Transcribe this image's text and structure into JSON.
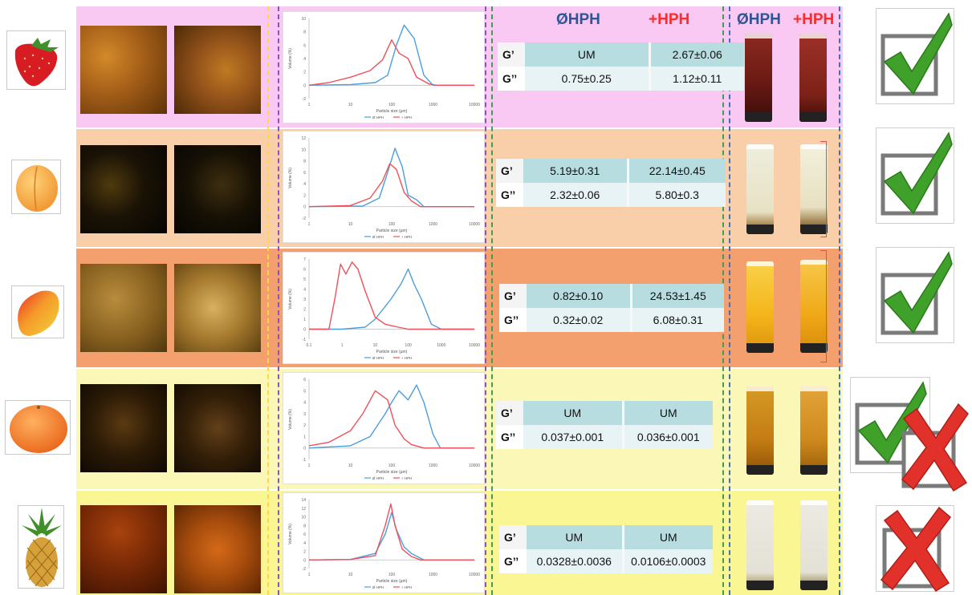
{
  "headers": {
    "rheo_no_hph": "ØHPH",
    "rheo_hph": "+HPH",
    "vial_no_hph": "ØHPH",
    "vial_hph": "+HPH"
  },
  "colors": {
    "no_hph": "#2f5597",
    "hph": "#ff2a2a",
    "psd_no_hph": "#4a9ee0",
    "psd_hph": "#f0505a"
  },
  "psd_axis": {
    "xlabel": "Particle size (µm)",
    "ylabel": "Volume (%)",
    "legend_no_hph": "Ø HPH",
    "legend_hph": "+ HPH"
  },
  "rows": [
    {
      "fruit": "strawberry",
      "icon": "strawberry-icon",
      "g1_label": "G’",
      "g1_no_hph": "UM",
      "g1_hph": "2.67±0.06",
      "g2_label": "G’’",
      "g2_no_hph": "0.75±0.25",
      "g2_hph": "1.12±0.11",
      "verdict": "check",
      "chart_data": {
        "type": "line",
        "xscale": "log",
        "xticks": [
          "1",
          "10",
          "100",
          "1000",
          "10000"
        ],
        "yticks": [
          "-2",
          "0",
          "2",
          "4",
          "6",
          "8",
          "10"
        ],
        "ylim": [
          -2,
          10
        ],
        "series": [
          {
            "name": "Ø HPH",
            "x": [
              1,
              10,
              40,
              80,
              130,
              200,
              350,
              600,
              1000,
              10000
            ],
            "y": [
              0,
              0.1,
              0.4,
              1.5,
              6.0,
              9.0,
              7.0,
              1.5,
              0,
              0
            ]
          },
          {
            "name": "+ HPH",
            "x": [
              1,
              3,
              10,
              30,
              60,
              100,
              150,
              250,
              400,
              800,
              1200,
              10000
            ],
            "y": [
              0,
              0.4,
              1.2,
              2.2,
              3.8,
              6.8,
              4.8,
              4.0,
              1.2,
              0.2,
              0,
              0
            ]
          }
        ]
      }
    },
    {
      "fruit": "apricot",
      "icon": "apricot-icon",
      "g1_label": "G’",
      "g1_no_hph": "5.19±0.31",
      "g1_hph": "22.14±0.45",
      "g2_label": "G’’",
      "g2_no_hph": "2.32±0.06",
      "g2_hph": "5.80±0.3",
      "verdict": "check",
      "chart_data": {
        "type": "line",
        "xscale": "log",
        "xticks": [
          "1",
          "10",
          "100",
          "1000",
          "10000"
        ],
        "yticks": [
          "-2",
          "0",
          "2",
          "4",
          "6",
          "8",
          "10",
          "12"
        ],
        "ylim": [
          -2,
          12
        ],
        "series": [
          {
            "name": "Ø HPH",
            "x": [
              1,
              20,
              50,
              80,
              120,
              180,
              250,
              400,
              600,
              10000
            ],
            "y": [
              0,
              0.1,
              1.5,
              6.0,
              10.2,
              7.0,
              2.0,
              1.2,
              0,
              0
            ]
          },
          {
            "name": "+ HPH",
            "x": [
              1,
              10,
              30,
              60,
              90,
              130,
              200,
              300,
              500,
              10000
            ],
            "y": [
              0,
              0.2,
              1.5,
              4.5,
              7.5,
              6.5,
              2.5,
              1.0,
              0,
              0
            ]
          }
        ]
      }
    },
    {
      "fruit": "mango",
      "icon": "mango-icon",
      "g1_label": "G’",
      "g1_no_hph": "0.82±0.10",
      "g1_hph": "24.53±1.45",
      "g2_label": "G’’",
      "g2_no_hph": "0.32±0.02",
      "g2_hph": "6.08±0.31",
      "verdict": "check",
      "chart_data": {
        "type": "line",
        "xscale": "log",
        "xticks": [
          "0.1",
          "1",
          "10",
          "100",
          "1000",
          "10000"
        ],
        "yticks": [
          "-1",
          "0",
          "1",
          "2",
          "3",
          "4",
          "5",
          "6",
          "7"
        ],
        "ylim": [
          -1,
          7
        ],
        "series": [
          {
            "name": "Ø HPH",
            "x": [
              0.1,
              1,
              5,
              10,
              30,
              60,
              100,
              150,
              250,
              500,
              1000,
              10000
            ],
            "y": [
              0,
              0,
              0.2,
              1.0,
              3.0,
              4.5,
              6.0,
              4.5,
              3.0,
              0.5,
              0,
              0
            ]
          },
          {
            "name": "+ HPH",
            "x": [
              0.1,
              0.4,
              0.6,
              0.9,
              1.3,
              2,
              3,
              5,
              10,
              20,
              50,
              100,
              10000
            ],
            "y": [
              0,
              0,
              3.0,
              6.5,
              5.5,
              6.7,
              6.0,
              3.8,
              1.2,
              0.5,
              0.2,
              0,
              0
            ]
          }
        ]
      }
    },
    {
      "fruit": "tangerine",
      "icon": "tangerine-icon",
      "g1_label": "G’",
      "g1_no_hph": "UM",
      "g1_hph": "UM",
      "g2_label": "G’’",
      "g2_no_hph": "0.037±0.001",
      "g2_hph": "0.036±0.001",
      "verdict": "check-and-cross",
      "chart_data": {
        "type": "line",
        "xscale": "log",
        "xticks": [
          "1",
          "10",
          "100",
          "1000",
          "10000"
        ],
        "yticks": [
          "-1",
          "0",
          "1",
          "2",
          "3",
          "4",
          "5",
          "6"
        ],
        "ylim": [
          -1,
          6
        ],
        "series": [
          {
            "name": "Ø HPH",
            "x": [
              1,
              10,
              30,
              70,
              100,
              150,
              250,
              400,
              600,
              1000,
              1500,
              10000
            ],
            "y": [
              0,
              0.2,
              1.0,
              3.0,
              4.0,
              5.0,
              4.2,
              5.5,
              4.0,
              1.2,
              0,
              0
            ]
          },
          {
            "name": "+ HPH",
            "x": [
              1,
              3,
              10,
              20,
              40,
              80,
              120,
              200,
              300,
              600,
              10000
            ],
            "y": [
              0.2,
              0.5,
              1.5,
              3.0,
              5.0,
              4.2,
              2.0,
              0.8,
              0.3,
              0,
              0
            ]
          }
        ]
      }
    },
    {
      "fruit": "pineapple",
      "icon": "pineapple-icon",
      "g1_label": "G’",
      "g1_no_hph": "UM",
      "g1_hph": "UM",
      "g2_label": "G’’",
      "g2_no_hph": "0.0328±0.0036",
      "g2_hph": "0.0106±0.0003",
      "verdict": "cross",
      "chart_data": {
        "type": "line",
        "xscale": "log",
        "xticks": [
          "1",
          "10",
          "100",
          "1000",
          "10000"
        ],
        "yticks": [
          "-2",
          "0",
          "2",
          "4",
          "6",
          "8",
          "10",
          "12",
          "14"
        ],
        "ylim": [
          -2,
          14
        ],
        "series": [
          {
            "name": "Ø HPH",
            "x": [
              1,
              10,
              40,
              70,
              100,
              130,
              200,
              300,
              600,
              10000
            ],
            "y": [
              0,
              0.1,
              1.5,
              6.0,
              11.0,
              7.0,
              3.0,
              1.5,
              0,
              0
            ]
          },
          {
            "name": "+ HPH",
            "x": [
              1,
              10,
              40,
              70,
              95,
              120,
              180,
              300,
              500,
              10000
            ],
            "y": [
              0,
              0.1,
              1.0,
              8.0,
              13.0,
              8.0,
              2.5,
              0.8,
              0,
              0
            ]
          }
        ]
      }
    }
  ]
}
